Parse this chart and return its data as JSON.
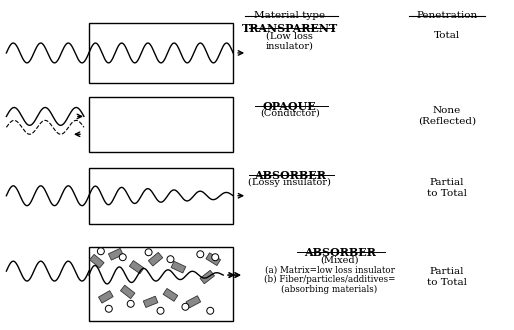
{
  "bg_color": "#ffffff",
  "fig_width": 5.14,
  "fig_height": 3.3,
  "dpi": 100,
  "header_material": "Material type",
  "header_penetration": "Penetration",
  "rows": [
    {
      "material_name": "TRANSPARENT",
      "material_sub1": "(Low loss",
      "material_sub2": "insulator)",
      "penetration1": "Total",
      "penetration2": "",
      "type": "transparent"
    },
    {
      "material_name": "OPAQUE",
      "material_sub1": "(Conductor)",
      "material_sub2": "",
      "penetration1": "None",
      "penetration2": "(Reflected)",
      "type": "opaque"
    },
    {
      "material_name": "ABSORBER",
      "material_sub1": "(Lossy insulator)",
      "material_sub2": "",
      "penetration1": "Partial",
      "penetration2": "to Total",
      "type": "absorber"
    },
    {
      "material_name": "ABSORBER",
      "material_sub1": "(Mixed)",
      "material_sub2": "(a) Matrix=low loss insulator",
      "material_sub3": "(b) Fiber/particles/additives=",
      "material_sub4": "(absorbing materials)",
      "penetration1": "Partial",
      "penetration2": "to Total",
      "type": "mixed"
    }
  ],
  "wave_color": "#000000",
  "box_color": "#000000",
  "text_color": "#000000"
}
